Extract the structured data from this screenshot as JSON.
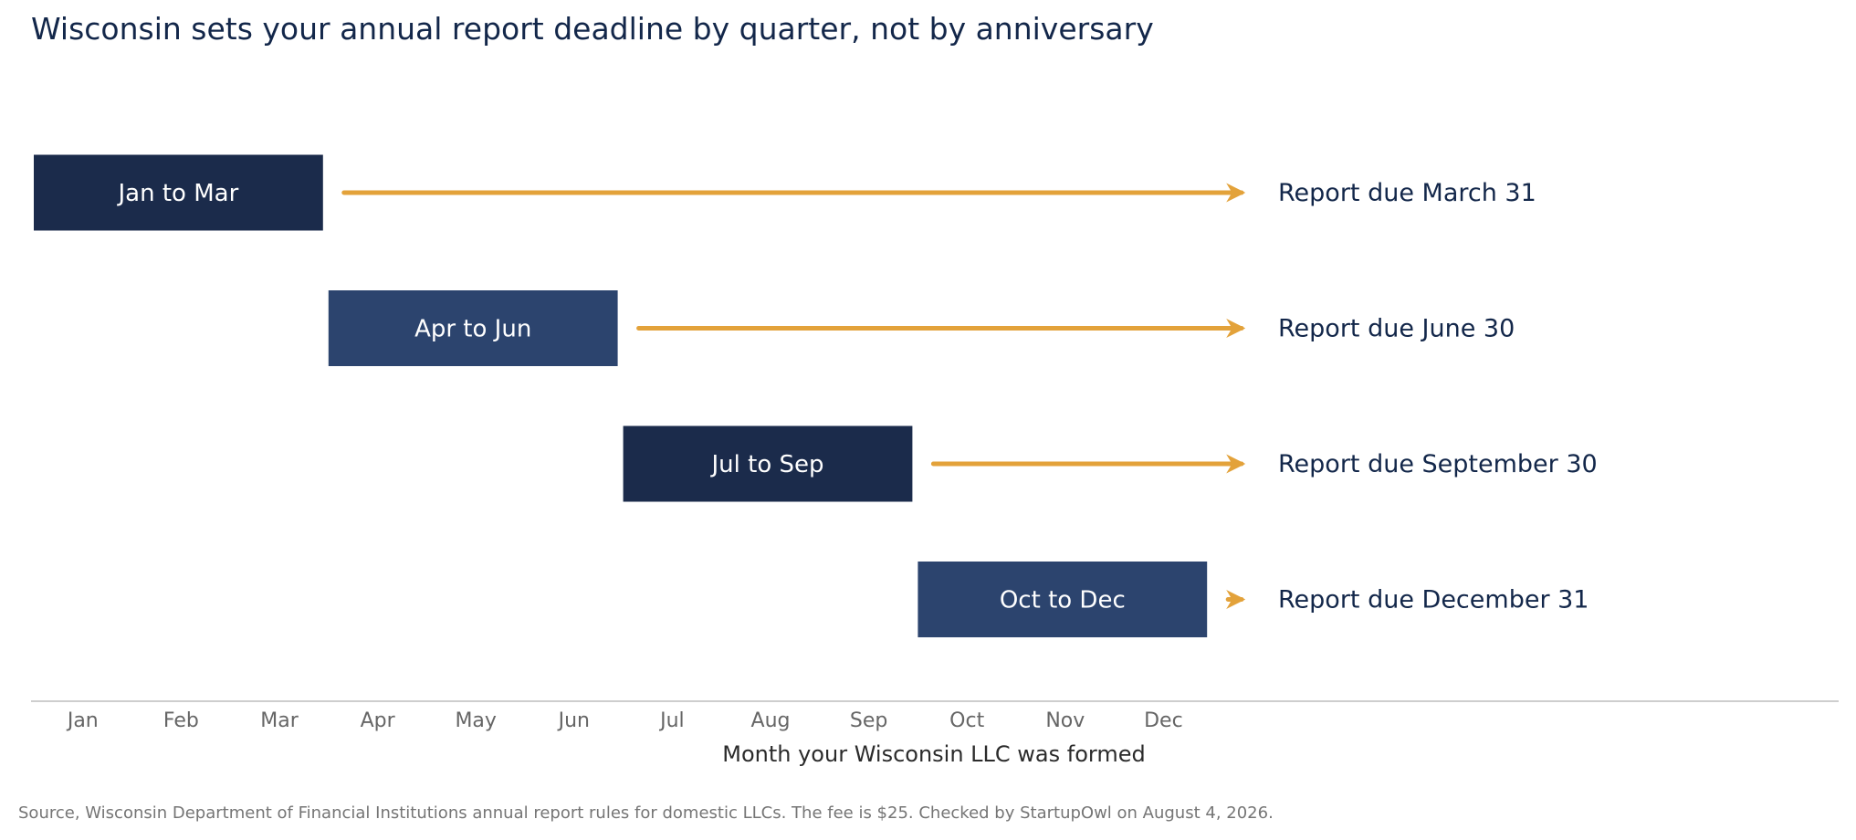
{
  "chart_data": {
    "type": "timeline",
    "title": "Wisconsin sets your annual report deadline by quarter, not by anniversary",
    "xlabel": "Month your Wisconsin LLC was formed",
    "x_ticks": [
      "Jan",
      "Feb",
      "Mar",
      "Apr",
      "May",
      "Jun",
      "Jul",
      "Aug",
      "Sep",
      "Oct",
      "Nov",
      "Dec"
    ],
    "rows": [
      {
        "label": "Jan to Mar",
        "start_month": 1,
        "end_month": 3,
        "deadline": "Report due March 31",
        "color": "#1b2b4b"
      },
      {
        "label": "Apr to Jun",
        "start_month": 4,
        "end_month": 6,
        "deadline": "Report due June 30",
        "color": "#2c446e"
      },
      {
        "label": "Jul to Sep",
        "start_month": 7,
        "end_month": 9,
        "deadline": "Report due September 30",
        "color": "#1b2b4b"
      },
      {
        "label": "Oct to Dec",
        "start_month": 10,
        "end_month": 12,
        "deadline": "Report due December 31",
        "color": "#2c446e"
      }
    ],
    "arrow_color": "#e3a23a",
    "source": "Source, Wisconsin Department of Financial Institutions annual report rules for domestic LLCs. The fee is $25. Checked by StartupOwl on August 4, 2026."
  }
}
